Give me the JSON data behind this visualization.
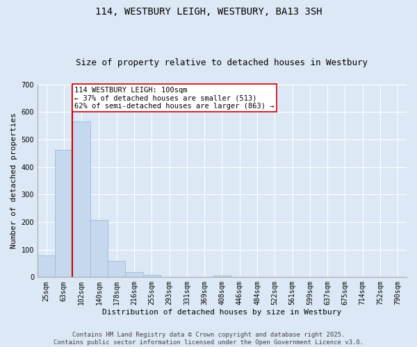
{
  "title": "114, WESTBURY LEIGH, WESTBURY, BA13 3SH",
  "subtitle": "Size of property relative to detached houses in Westbury",
  "xlabel": "Distribution of detached houses by size in Westbury",
  "ylabel": "Number of detached properties",
  "categories": [
    "25sqm",
    "63sqm",
    "102sqm",
    "140sqm",
    "178sqm",
    "216sqm",
    "255sqm",
    "293sqm",
    "331sqm",
    "369sqm",
    "408sqm",
    "446sqm",
    "484sqm",
    "522sqm",
    "561sqm",
    "599sqm",
    "637sqm",
    "675sqm",
    "714sqm",
    "752sqm",
    "790sqm"
  ],
  "values": [
    80,
    462,
    567,
    208,
    60,
    18,
    8,
    1,
    0,
    0,
    7,
    0,
    0,
    0,
    0,
    0,
    0,
    0,
    0,
    0,
    0
  ],
  "bar_color": "#c5d8ee",
  "bar_edge_color": "#9dbcd8",
  "background_color": "#dce8f5",
  "grid_color": "#ffffff",
  "vline_x_index": 2,
  "vline_color": "#cc0000",
  "annotation_text": "114 WESTBURY LEIGH: 100sqm\n← 37% of detached houses are smaller (513)\n62% of semi-detached houses are larger (863) →",
  "annotation_box_color": "#ffffff",
  "annotation_box_edge": "#cc0000",
  "ylim": [
    0,
    700
  ],
  "yticks": [
    0,
    100,
    200,
    300,
    400,
    500,
    600,
    700
  ],
  "footer_text": "Contains HM Land Registry data © Crown copyright and database right 2025.\nContains public sector information licensed under the Open Government Licence v3.0.",
  "title_fontsize": 10,
  "subtitle_fontsize": 9,
  "xlabel_fontsize": 8,
  "ylabel_fontsize": 8,
  "tick_fontsize": 7,
  "annotation_fontsize": 7.5,
  "footer_fontsize": 6.5
}
